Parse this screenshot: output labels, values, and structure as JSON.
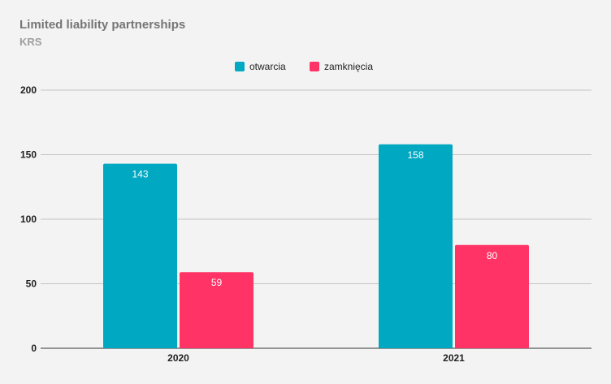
{
  "chart_data": {
    "type": "bar",
    "title": "Limited liability partnerships",
    "subtitle": "KRS",
    "categories": [
      "2020",
      "2021"
    ],
    "series": [
      {
        "name": "otwarcia",
        "values": [
          143,
          158
        ],
        "color": "#00a8c2"
      },
      {
        "name": "zamknięcia",
        "values": [
          59,
          80
        ],
        "color": "#ff3366"
      }
    ],
    "ylim": [
      0,
      200
    ],
    "yticks": [
      0,
      50,
      100,
      150,
      200
    ],
    "grid": true,
    "legend": "top-center",
    "data_labels": true
  }
}
